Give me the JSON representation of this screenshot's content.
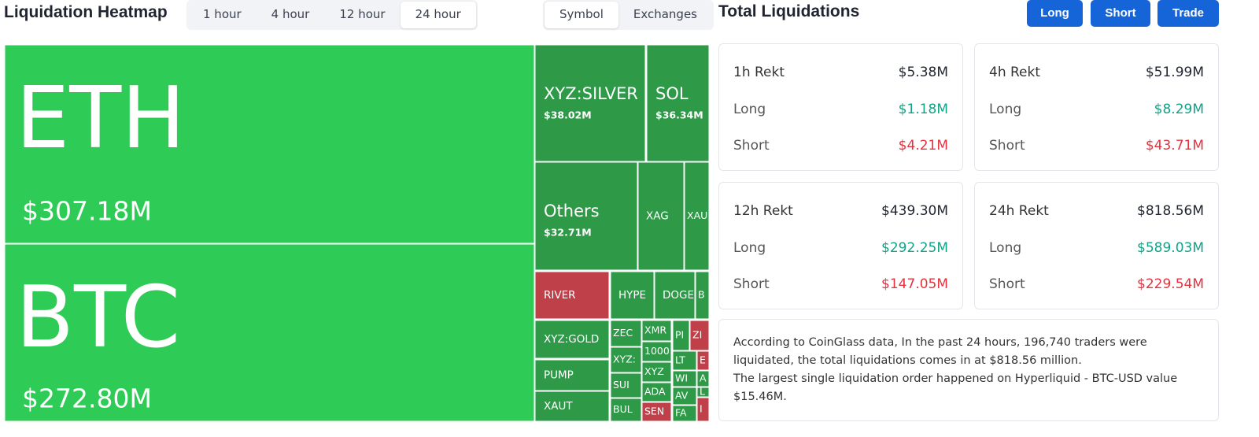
{
  "header": {
    "title": "Liquidation Heatmap",
    "timeframes": [
      "1 hour",
      "4 hour",
      "12 hour",
      "24 hour"
    ],
    "views": [
      "Symbol",
      "Exchanges"
    ]
  },
  "heatmap": {
    "tiles": [
      {
        "label": "ETH",
        "value": "$307.18M"
      },
      {
        "label": "BTC",
        "value": "$272.80M"
      },
      {
        "label": "XYZ:SILVER",
        "value": "$38.02M"
      },
      {
        "label": "SOL",
        "value": "$36.34M"
      },
      {
        "label": "Others",
        "value": "$32.71M"
      },
      {
        "label": "XAG"
      },
      {
        "label": "XAU"
      },
      {
        "label": "RIVER"
      },
      {
        "label": "HYPE"
      },
      {
        "label": "DOGE"
      },
      {
        "label": "B"
      },
      {
        "label": "XYZ:GOLD"
      },
      {
        "label": "PUMP"
      },
      {
        "label": "XAUT"
      },
      {
        "label": "ZEC"
      },
      {
        "label": "XYZ:"
      },
      {
        "label": "SUI"
      },
      {
        "label": "BUL"
      },
      {
        "label": "XMR"
      },
      {
        "label": "1000"
      },
      {
        "label": "XYZ"
      },
      {
        "label": "ADA"
      },
      {
        "label": "SEN"
      },
      {
        "label": "PI"
      },
      {
        "label": "ZI"
      },
      {
        "label": "LT"
      },
      {
        "label": "E"
      },
      {
        "label": "WI"
      },
      {
        "label": "A"
      },
      {
        "label": "AV"
      },
      {
        "label": "L"
      },
      {
        "label": "FA"
      },
      {
        "label": "I"
      }
    ]
  },
  "summary": {
    "title": "Total Liquidations",
    "buttons": [
      "Long",
      "Short",
      "Trade"
    ],
    "cards": [
      {
        "title": "1h Rekt",
        "total": "$5.38M",
        "long_label": "Long",
        "long": "$1.18M",
        "short_label": "Short",
        "short": "$4.21M"
      },
      {
        "title": "4h Rekt",
        "total": "$51.99M",
        "long_label": "Long",
        "long": "$8.29M",
        "short_label": "Short",
        "short": "$43.71M"
      },
      {
        "title": "12h Rekt",
        "total": "$439.30M",
        "long_label": "Long",
        "long": "$292.25M",
        "short_label": "Short",
        "short": "$147.05M"
      },
      {
        "title": "24h Rekt",
        "total": "$818.56M",
        "long_label": "Long",
        "long": "$589.03M",
        "short_label": "Short",
        "short": "$229.54M"
      }
    ],
    "note": [
      "According to CoinGlass data, In the past 24 hours, 196,740 traders were liquidated, the total liquidations comes in at $818.56 million.",
      "The largest single liquidation order happened on Hyperliquid - BTC-USD value $15.46M."
    ]
  }
}
